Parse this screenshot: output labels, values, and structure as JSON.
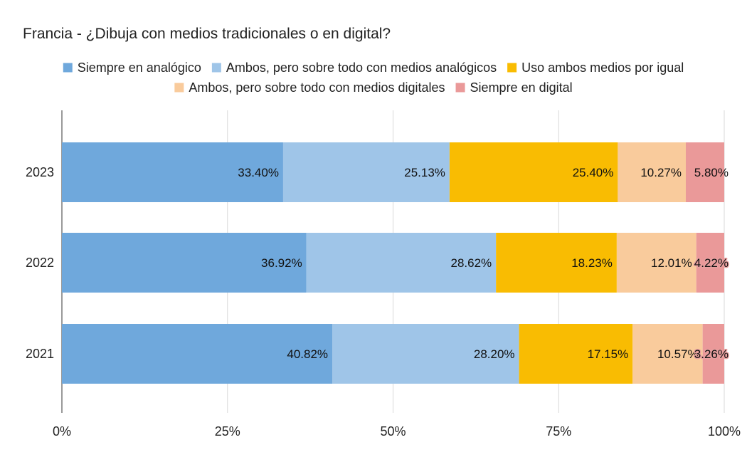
{
  "chart_data": {
    "type": "bar",
    "orientation": "horizontal",
    "stacked": "percent",
    "title": "Francia - ¿Dibuja con medios tradicionales o en digital?",
    "categories": [
      "2023",
      "2022",
      "2021"
    ],
    "series": [
      {
        "name": "Siempre en analógico",
        "color": "#6fa8dc",
        "values": [
          33.4,
          36.92,
          40.82
        ],
        "labels": [
          "33.40%",
          "36.92%",
          "40.82%"
        ]
      },
      {
        "name": "Ambos, pero sobre todo con medios analógicos",
        "color": "#9fc5e8",
        "values": [
          25.13,
          28.62,
          28.2
        ],
        "labels": [
          "25.13%",
          "28.62%",
          "28.20%"
        ]
      },
      {
        "name": "Uso ambos medios por igual",
        "color": "#f9bc02",
        "values": [
          25.4,
          18.23,
          17.15
        ],
        "labels": [
          "25.40%",
          "18.23%",
          "17.15%"
        ]
      },
      {
        "name": "Ambos, pero sobre todo con medios digitales",
        "color": "#f9cb9c",
        "values": [
          10.27,
          12.01,
          10.57
        ],
        "labels": [
          "10.27%",
          "12.01%",
          "10.57%"
        ]
      },
      {
        "name": "Siempre en digital",
        "color": "#ea9999",
        "values": [
          5.8,
          4.22,
          3.26
        ],
        "labels": [
          "5.80%",
          "4.22%",
          "3.26%"
        ]
      }
    ],
    "x_ticks": [
      "0%",
      "25%",
      "50%",
      "75%",
      "100%"
    ],
    "xlim": [
      0,
      100
    ],
    "grid": true,
    "legend_position": "top"
  }
}
